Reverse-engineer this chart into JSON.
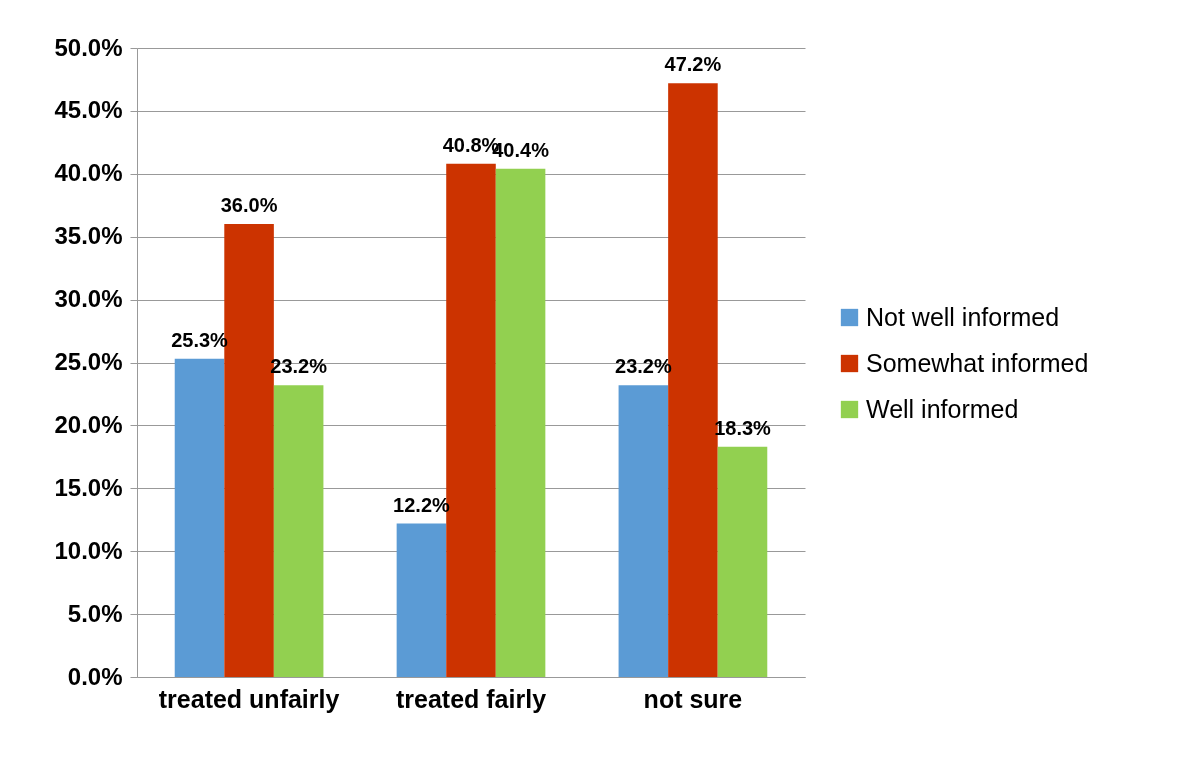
{
  "chart_data": {
    "type": "bar",
    "categories": [
      "treated unfairly",
      "treated fairly",
      "not sure"
    ],
    "series": [
      {
        "name": "Not well informed",
        "color": "#5b9bd5",
        "values": [
          25.3,
          12.2,
          23.2
        ],
        "value_labels": [
          "25.3%",
          "12.2%",
          "23.2%"
        ]
      },
      {
        "name": "Somewhat informed",
        "color": "#cc3300",
        "values": [
          36.0,
          40.8,
          47.2
        ],
        "value_labels": [
          "36.0%",
          "40.8%",
          "47.2%"
        ]
      },
      {
        "name": "Well informed",
        "color": "#92d050",
        "values": [
          23.2,
          40.4,
          18.3
        ],
        "value_labels": [
          "23.2%",
          "40.4%",
          "18.3%"
        ]
      }
    ],
    "ylim": [
      0,
      50
    ],
    "yticks": [
      {
        "value": 0,
        "label": "0.0%"
      },
      {
        "value": 5,
        "label": "5.0%"
      },
      {
        "value": 10,
        "label": "10.0%"
      },
      {
        "value": 15,
        "label": "15.0%"
      },
      {
        "value": 20,
        "label": "20.0%"
      },
      {
        "value": 25,
        "label": "25.0%"
      },
      {
        "value": 30,
        "label": "30.0%"
      },
      {
        "value": 35,
        "label": "35.0%"
      },
      {
        "value": 40,
        "label": "40.0%"
      },
      {
        "value": 45,
        "label": "45.0%"
      },
      {
        "value": 50,
        "label": "50.0%"
      }
    ],
    "grid": "y",
    "legend": "right"
  }
}
